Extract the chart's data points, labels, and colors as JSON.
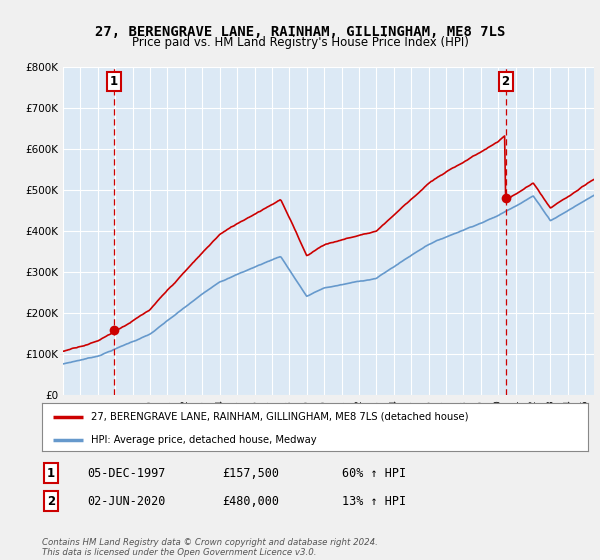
{
  "title": "27, BERENGRAVE LANE, RAINHAM, GILLINGHAM, ME8 7LS",
  "subtitle": "Price paid vs. HM Land Registry's House Price Index (HPI)",
  "legend_line1": "27, BERENGRAVE LANE, RAINHAM, GILLINGHAM, ME8 7LS (detached house)",
  "legend_line2": "HPI: Average price, detached house, Medway",
  "annotation1_label": "1",
  "annotation1_date": "05-DEC-1997",
  "annotation1_price": "£157,500",
  "annotation1_hpi": "60% ↑ HPI",
  "annotation2_label": "2",
  "annotation2_date": "02-JUN-2020",
  "annotation2_price": "£480,000",
  "annotation2_hpi": "13% ↑ HPI",
  "footer": "Contains HM Land Registry data © Crown copyright and database right 2024.\nThis data is licensed under the Open Government Licence v3.0.",
  "red_color": "#cc0000",
  "blue_color": "#6699cc",
  "plot_bg_color": "#dce9f5",
  "background_color": "#f0f0f0",
  "ylim": [
    0,
    800000
  ],
  "yticks": [
    0,
    100000,
    200000,
    300000,
    400000,
    500000,
    600000,
    700000,
    800000
  ],
  "ytick_labels": [
    "£0",
    "£100K",
    "£200K",
    "£300K",
    "£400K",
    "£500K",
    "£600K",
    "£700K",
    "£800K"
  ],
  "sale1_year": 1997.92,
  "sale1_price": 157500,
  "sale2_year": 2020.42,
  "sale2_price": 480000,
  "xlim_start": 1995,
  "xlim_end": 2025.5
}
